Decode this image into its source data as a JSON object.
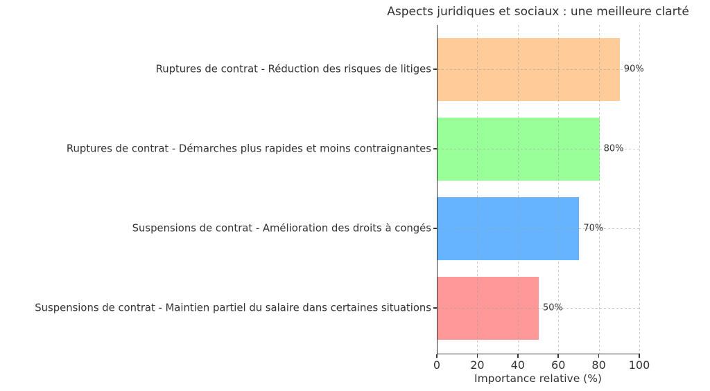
{
  "chart_data": {
    "type": "bar",
    "orientation": "horizontal",
    "title": "Aspects juridiques et sociaux : une meilleure clarté",
    "xlabel": "Importance relative (%)",
    "ylabel": "",
    "categories": [
      "Ruptures de contrat - Réduction des risques de litiges",
      "Ruptures de contrat - Démarches plus rapides et moins contraignantes",
      "Suspensions de contrat - Amélioration des droits à congés",
      "Suspensions de contrat - Maintien partiel du salaire dans certaines situations"
    ],
    "values": [
      90,
      80,
      70,
      50
    ],
    "value_labels": [
      "90%",
      "80%",
      "70%",
      "50%"
    ],
    "bar_colors": [
      "#ffcc99",
      "#99ff99",
      "#66b3ff",
      "#ff9999"
    ],
    "xlim": [
      0,
      100
    ],
    "xticks": [
      0,
      20,
      40,
      60,
      80,
      100
    ],
    "xtick_labels": [
      "0",
      "20",
      "40",
      "60",
      "80",
      "100"
    ],
    "grid": {
      "visible": true,
      "style": "dashed",
      "axis": "both",
      "color": "#cbcbcb"
    },
    "legend": null,
    "spines": [
      "left",
      "bottom"
    ],
    "text_color": "#333333",
    "background": "#ffffff"
  }
}
